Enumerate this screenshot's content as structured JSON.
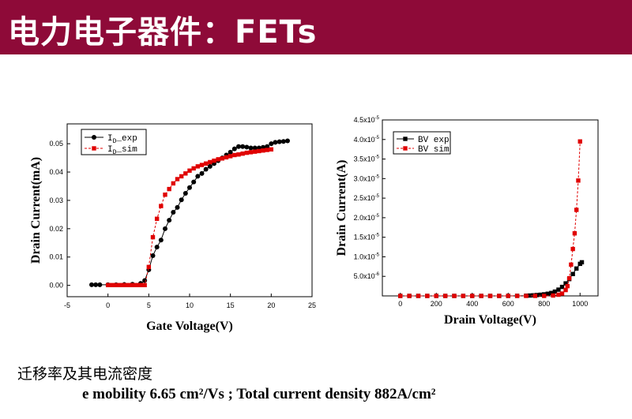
{
  "slide": {
    "title": "电力电子器件：FETs",
    "caption_line1": "迁移率及其电流密度",
    "caption_line2": "e mobility 6.65 cm²/Vs ; Total current density  882A/cm²",
    "colors": {
      "title_bar": "#8e0a38",
      "exp_series": "#000000",
      "sim_series": "#e00000"
    }
  },
  "chart_data": [
    {
      "type": "line",
      "xlabel": "Gate Voltage(V)",
      "ylabel": "Drain Current(mA)",
      "xlim": [
        -5,
        25
      ],
      "ylim": [
        -0.004,
        0.057
      ],
      "xticks": [
        -5,
        0,
        5,
        10,
        15,
        20,
        25
      ],
      "yticks": [
        0.0,
        0.01,
        0.02,
        0.03,
        0.04,
        0.05
      ],
      "ytick_labels": [
        "0.00",
        "0.01",
        "0.02",
        "0.03",
        "0.04",
        "0.05"
      ],
      "legend_position": "top-left",
      "series": [
        {
          "name": "I_D_exp",
          "legend_main": "I",
          "legend_sub": "D",
          "legend_rest": "_exp",
          "color": "#000000",
          "marker": "circle",
          "line": "solid",
          "x": [
            -2,
            -1.5,
            -1,
            0,
            1,
            2,
            3,
            4,
            4.5,
            5,
            5.5,
            6,
            6.5,
            7,
            7.5,
            8,
            8.5,
            9,
            9.5,
            10,
            10.5,
            11,
            11.5,
            12,
            12.5,
            13,
            13.5,
            14,
            14.5,
            15,
            15.5,
            16,
            16.5,
            17,
            17.5,
            18,
            18.5,
            19,
            19.5,
            20,
            20.5,
            21,
            21.5,
            22
          ],
          "y": [
            0.0002,
            0.0002,
            0.0002,
            0.0002,
            0.0002,
            0.0003,
            0.0004,
            0.0007,
            0.0017,
            0.0055,
            0.0105,
            0.0135,
            0.016,
            0.02,
            0.023,
            0.0258,
            0.0275,
            0.0302,
            0.0325,
            0.0345,
            0.0365,
            0.0385,
            0.0395,
            0.041,
            0.042,
            0.043,
            0.044,
            0.045,
            0.046,
            0.047,
            0.0482,
            0.049,
            0.049,
            0.0488,
            0.0485,
            0.0485,
            0.0485,
            0.0487,
            0.049,
            0.05,
            0.0505,
            0.0507,
            0.0508,
            0.051
          ]
        },
        {
          "name": "I_D_sim",
          "legend_main": "I",
          "legend_sub": "D",
          "legend_rest": "_sim",
          "color": "#e00000",
          "marker": "square",
          "line": "dashed",
          "x": [
            0,
            0.5,
            1,
            1.5,
            2,
            2.5,
            3,
            3.5,
            4,
            4.5,
            5,
            5.5,
            6,
            6.5,
            7,
            7.5,
            8,
            8.5,
            9,
            9.5,
            10,
            10.5,
            11,
            11.5,
            12,
            12.5,
            13,
            13.5,
            14,
            14.5,
            15,
            15.5,
            16,
            16.5,
            17,
            17.5,
            18,
            18.5,
            19,
            19.5,
            20
          ],
          "y": [
            0.0001,
            0.0001,
            0.0001,
            0.0001,
            0.0001,
            0.0001,
            0.0001,
            0.0001,
            0.0001,
            0.0001,
            0.0065,
            0.017,
            0.0235,
            0.028,
            0.032,
            0.034,
            0.036,
            0.0375,
            0.0385,
            0.0395,
            0.0405,
            0.0413,
            0.042,
            0.0425,
            0.043,
            0.0435,
            0.044,
            0.0445,
            0.0448,
            0.0452,
            0.0456,
            0.046,
            0.0462,
            0.0465,
            0.0468,
            0.047,
            0.0472,
            0.0474,
            0.0476,
            0.0478,
            0.048
          ]
        }
      ]
    },
    {
      "type": "line",
      "xlabel": "Drain Voltage(V)",
      "ylabel": "Drain Current(A)",
      "xlim": [
        -100,
        1100
      ],
      "ylim": [
        0,
        4.5e-05
      ],
      "xticks": [
        0,
        200,
        400,
        600,
        800,
        1000
      ],
      "yticks": [
        5e-06,
        1e-05,
        1.5e-05,
        2e-05,
        2.5e-05,
        3e-05,
        3.5e-05,
        4e-05,
        4.5e-05
      ],
      "ytick_mantissas": [
        "5.0",
        "1.0",
        "1.5",
        "2.0",
        "2.5",
        "3.0",
        "3.5",
        "4.0",
        "4.5"
      ],
      "ytick_exponents": [
        "-6",
        "-5",
        "-5",
        "-5",
        "-5",
        "-5",
        "-5",
        "-5",
        "-5"
      ],
      "legend_position": "top-left",
      "series": [
        {
          "name": "BV exp",
          "legend_label": "BV exp",
          "color": "#000000",
          "marker": "square",
          "line": "solid",
          "x": [
            0,
            50,
            100,
            150,
            200,
            250,
            300,
            350,
            400,
            450,
            500,
            550,
            600,
            650,
            700,
            720,
            740,
            760,
            780,
            800,
            820,
            840,
            860,
            880,
            900,
            920,
            940,
            960,
            980,
            1000,
            1010
          ],
          "y": [
            0,
            0,
            0,
            0,
            0,
            0,
            0,
            0,
            0,
            0,
            0,
            0,
            0,
            2e-08,
            6e-08,
            1e-07,
            1.5e-07,
            2.2e-07,
            3e-07,
            4e-07,
            5.5e-07,
            7.5e-07,
            1.1e-06,
            1.6e-06,
            2.3e-06,
            3.2e-06,
            4.3e-06,
            5.6e-06,
            7e-06,
            8.2e-06,
            8.6e-06
          ]
        },
        {
          "name": "BV sim",
          "legend_label": "BV sim",
          "color": "#e00000",
          "marker": "square",
          "line": "dashed",
          "x": [
            0,
            50,
            100,
            150,
            200,
            250,
            300,
            350,
            400,
            450,
            500,
            550,
            600,
            650,
            700,
            750,
            800,
            850,
            880,
            900,
            920,
            930,
            940,
            950,
            960,
            970,
            980,
            990,
            1000
          ],
          "y": [
            0,
            0,
            0,
            0,
            0,
            0,
            0,
            0,
            0,
            0,
            0,
            0,
            0,
            0,
            0,
            0,
            0,
            1e-07,
            3e-07,
            6e-07,
            1.5e-06,
            2.5e-06,
            4.5e-06,
            8e-06,
            1.2e-05,
            1.6e-05,
            2.2e-05,
            2.95e-05,
            3.95e-05
          ]
        }
      ]
    }
  ]
}
